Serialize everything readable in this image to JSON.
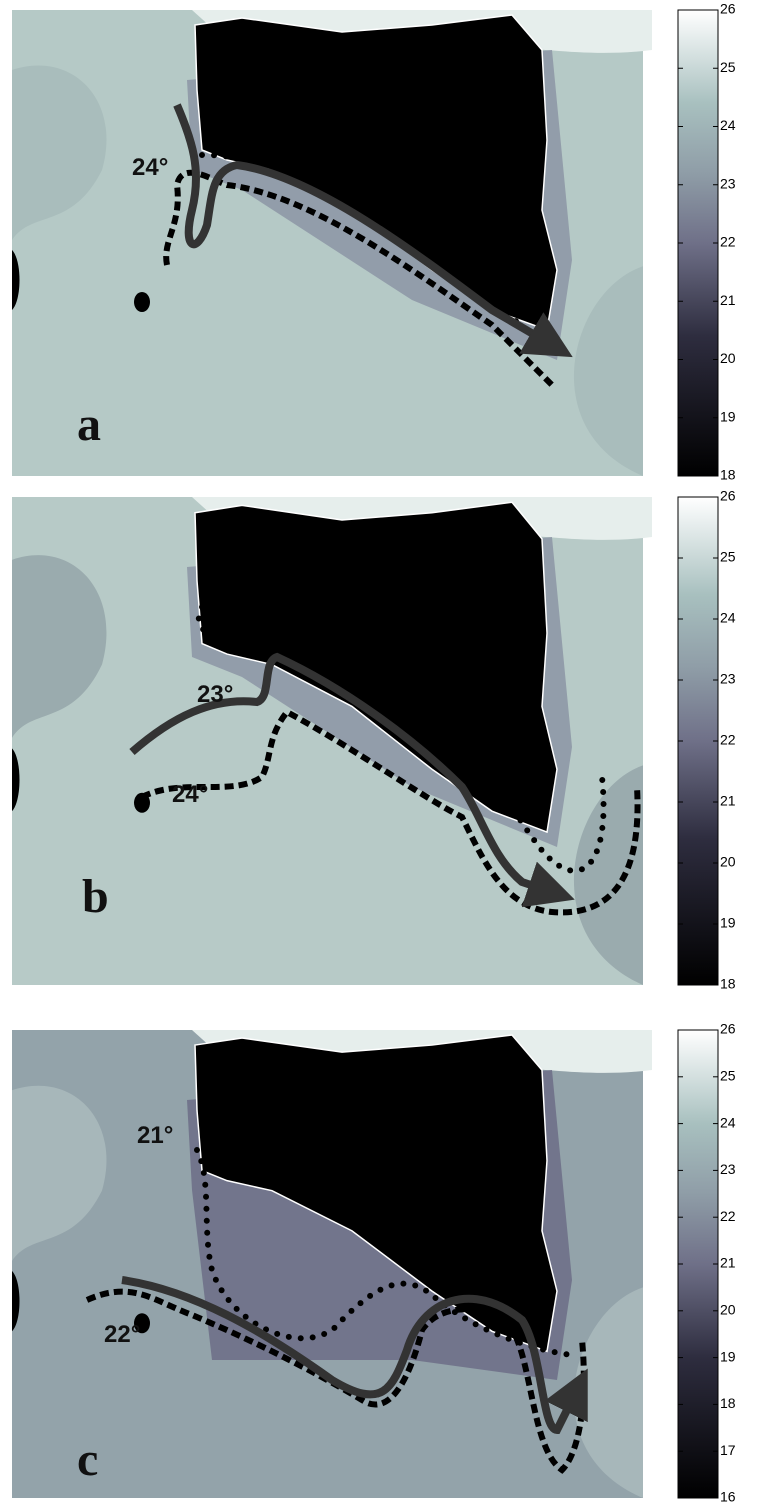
{
  "panels": [
    {
      "label": "a",
      "isotherms": [
        "24°"
      ],
      "colorbar": {
        "range": [
          18,
          26
        ],
        "ticks": [
          18,
          19,
          20,
          21,
          22,
          23,
          24,
          25,
          26
        ]
      }
    },
    {
      "label": "b",
      "isotherms": [
        "23°",
        "24°"
      ],
      "colorbar": {
        "range": [
          18,
          26
        ],
        "ticks": [
          18,
          19,
          20,
          21,
          22,
          23,
          24,
          25,
          26
        ]
      }
    },
    {
      "label": "c",
      "isotherms": [
        "21°",
        "22°"
      ],
      "colorbar": {
        "range": [
          16,
          26
        ],
        "ticks": [
          16,
          17,
          18,
          19,
          20,
          21,
          22,
          23,
          24,
          25,
          26
        ]
      }
    }
  ]
}
